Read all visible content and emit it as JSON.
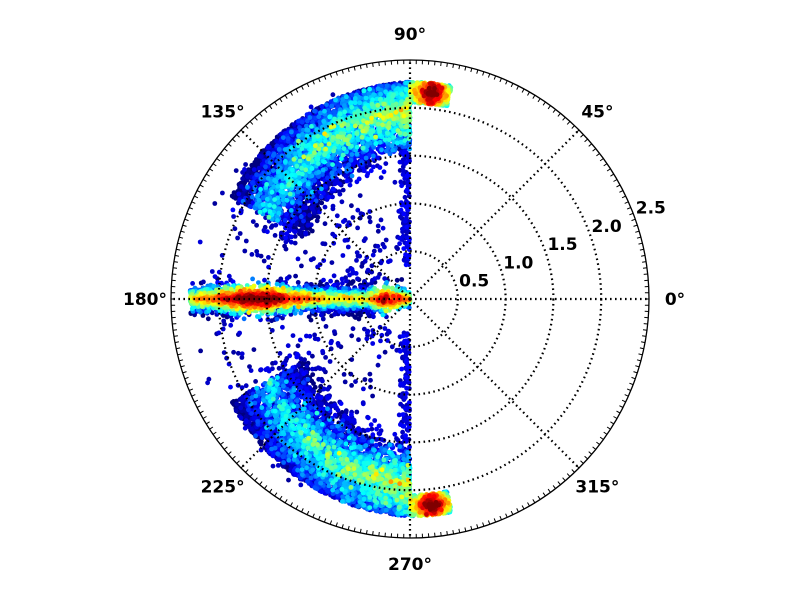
{
  "chart_data": {
    "type": "scatter",
    "projection": "polar",
    "title": "",
    "theta_labels": [
      "0°",
      "45°",
      "90°",
      "135°",
      "180°",
      "225°",
      "270°",
      "315°"
    ],
    "theta_values_deg": [
      0,
      45,
      90,
      135,
      180,
      225,
      270,
      315
    ],
    "r_labels": [
      "0.5",
      "1.0",
      "1.5",
      "2.0",
      "2.5"
    ],
    "r_values": [
      0.5,
      1.0,
      1.5,
      2.0,
      2.5
    ],
    "r_label_angle_deg": 22.5,
    "rlim": [
      0,
      2.5
    ],
    "grid": true,
    "grid_style": "dotted",
    "colormap": "jet",
    "color_meaning": "point density",
    "clusters": [
      {
        "theta_deg": [
          168,
          192
        ],
        "r": [
          0,
          2.3
        ],
        "density": "high",
        "shape": "horizontal band"
      },
      {
        "theta_deg": [
          90,
          150
        ],
        "r": [
          1.2,
          2.27
        ],
        "density": "high near r~2.2 at theta~80-90",
        "shape": "upper arc"
      },
      {
        "theta_deg": [
          210,
          270
        ],
        "r": [
          1.2,
          2.27
        ],
        "density": "high near r~2.2 at theta~270-280",
        "shape": "lower arc"
      }
    ]
  }
}
